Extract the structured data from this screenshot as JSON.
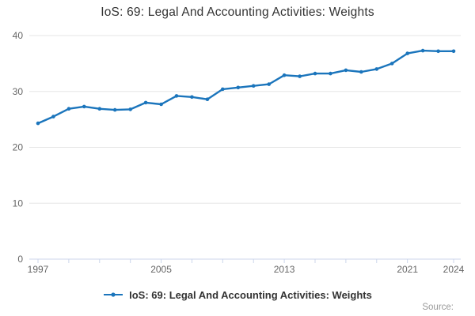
{
  "header": {
    "title": "IoS: 69: Legal And Accounting Activities: Weights"
  },
  "legend": {
    "items": [
      {
        "label": "IoS: 69: Legal And Accounting Activities: Weights",
        "marker": "line-dot-icon"
      }
    ]
  },
  "footer": {
    "source_label": "Source:"
  },
  "colors": {
    "series_line": "#1b75bc",
    "gridline": "#e6e6e6",
    "axis_line": "#ccd6eb",
    "tick_label": "#666666",
    "title_text": "#333333",
    "legend_text": "#333333",
    "source_text": "#999999",
    "background": "#ffffff"
  },
  "chart_data": {
    "type": "line",
    "title": "IoS: 69: Legal And Accounting Activities: Weights",
    "xlabel": "",
    "ylabel": "",
    "x": [
      1997,
      1998,
      1999,
      2000,
      2001,
      2002,
      2003,
      2004,
      2005,
      2006,
      2007,
      2008,
      2009,
      2010,
      2011,
      2012,
      2013,
      2014,
      2015,
      2016,
      2017,
      2018,
      2019,
      2020,
      2021,
      2022,
      2023,
      2024
    ],
    "series": [
      {
        "name": "IoS: 69: Legal And Accounting Activities: Weights",
        "values": [
          24.3,
          25.5,
          26.9,
          27.3,
          26.9,
          26.7,
          26.8,
          28.0,
          27.7,
          29.2,
          29.0,
          28.6,
          30.4,
          30.7,
          31.0,
          31.3,
          32.9,
          32.7,
          33.2,
          33.2,
          33.8,
          33.5,
          34.0,
          35.0,
          36.8,
          37.3,
          37.2,
          37.2
        ]
      }
    ],
    "ylim": [
      0,
      40
    ],
    "yticks": [
      0,
      10,
      20,
      30,
      40
    ],
    "xticks": [
      1997,
      1999,
      2001,
      2003,
      2005,
      2007,
      2009,
      2011,
      2013,
      2015,
      2017,
      2019,
      2021,
      2024
    ],
    "xtick_labels": [
      "1997",
      "2005",
      "2013",
      "2021",
      "2024"
    ],
    "xtick_label_years": [
      1997,
      2005,
      2013,
      2021,
      2024
    ],
    "grid": "horizontal",
    "legend_position": "bottom",
    "marker": "circle"
  }
}
